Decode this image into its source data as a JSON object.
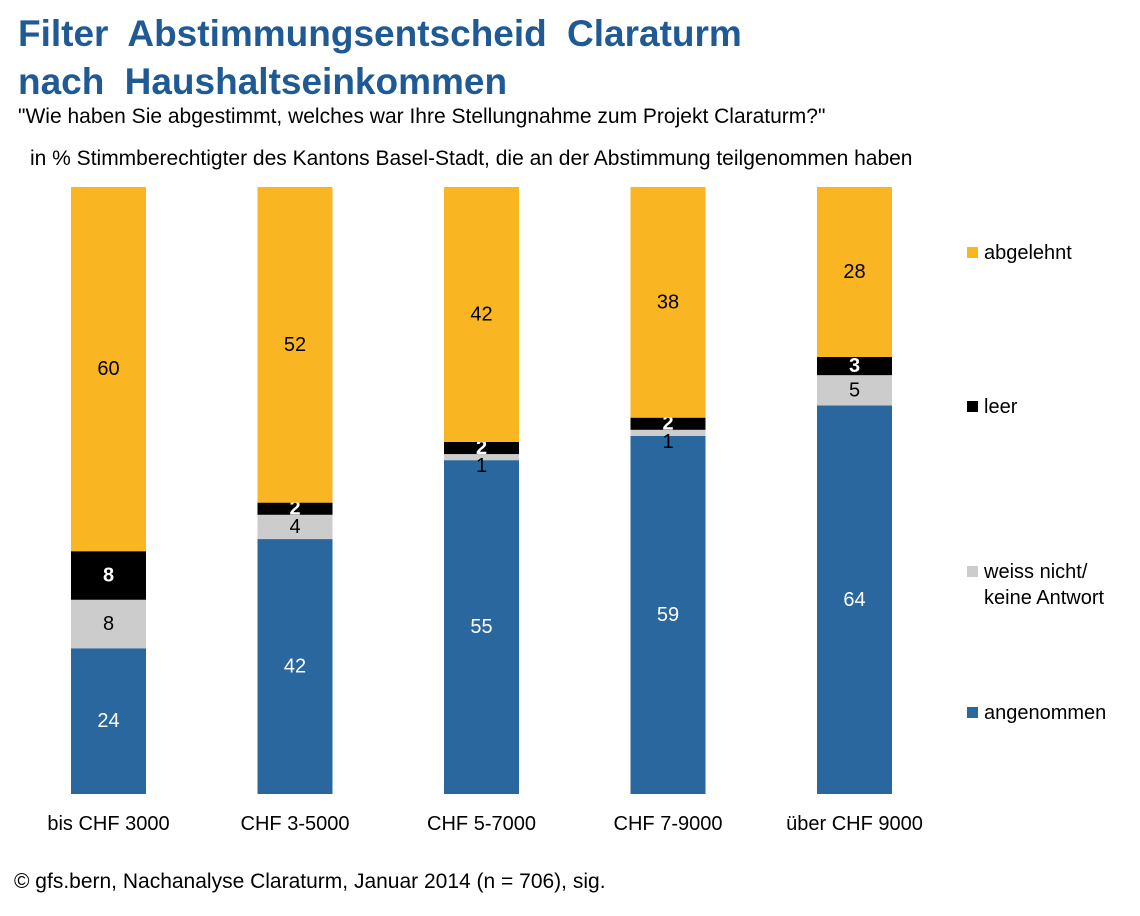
{
  "title_line1": "Filter Abstimmungsentscheid Claraturm",
  "title_line2": "nach Haushaltseinkommen",
  "subtitle": "\"Wie haben Sie abgestimmt, welches war Ihre Stellungnahme zum Projekt Claraturm?\"",
  "subtitle2": "in % Stimmberechtigter des Kantons Basel-Stadt, die an der Abstimmung teilgenommen haben",
  "footer": "© gfs.bern, Nachanalyse Claraturm, Januar 2014 (n = 706), sig.",
  "chart_data": {
    "type": "bar",
    "stacked": true,
    "normalized": true,
    "categories": [
      "bis CHF 3000",
      "CHF 3-5000",
      "CHF 5-7000",
      "CHF 7-9000",
      "über CHF 9000"
    ],
    "series": [
      {
        "name": "angenommen",
        "values": [
          24,
          42,
          55,
          59,
          64
        ],
        "color": "#2a679e",
        "label_color": "#ffffff"
      },
      {
        "name": "weiss nicht/ keine Antwort",
        "legend_lines": [
          "weiss nicht/",
          "keine Antwort"
        ],
        "values": [
          8,
          4,
          1,
          1,
          5
        ],
        "color": "#cccccc",
        "label_color": "#000000"
      },
      {
        "name": "leer",
        "values": [
          8,
          2,
          2,
          2,
          3
        ],
        "color": "#000000",
        "label_color": "#ffffff"
      },
      {
        "name": "abgelehnt",
        "values": [
          60,
          52,
          42,
          38,
          28
        ],
        "color": "#f9b622",
        "label_color": "#000000"
      }
    ],
    "legend_position": "right",
    "grid": false
  }
}
